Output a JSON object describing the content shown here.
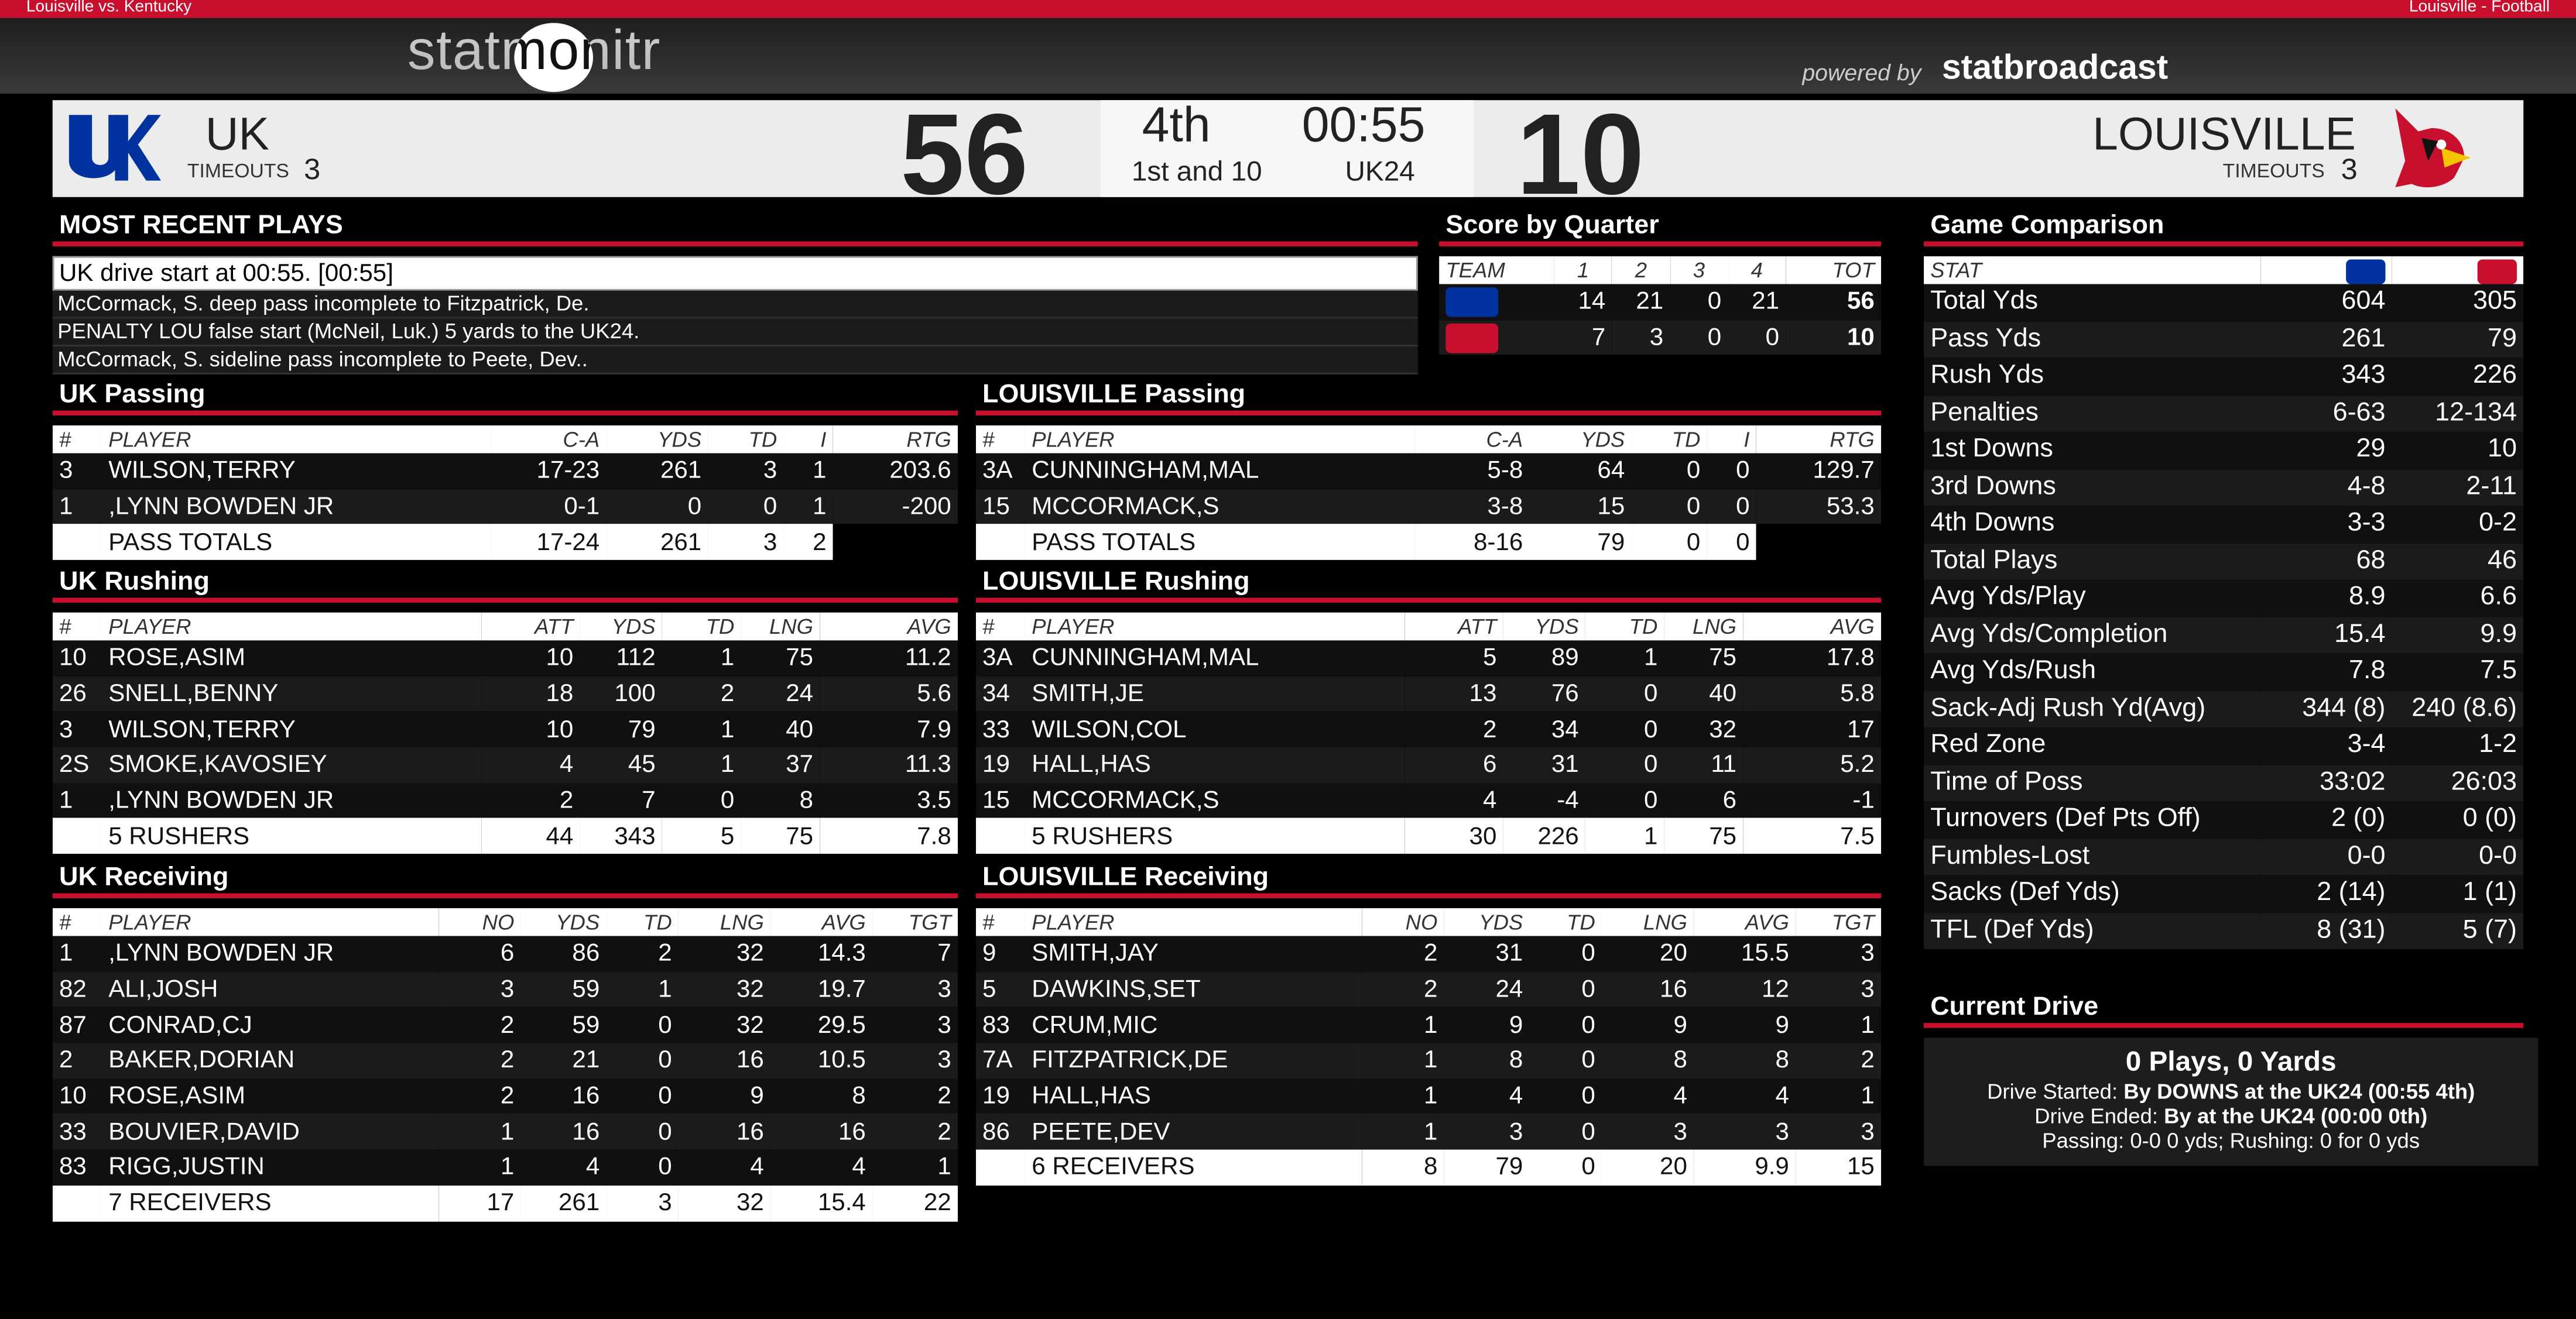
{
  "header": {
    "left": "Louisville vs. Kentucky",
    "right": "Louisville - Football",
    "logo": "statmonitr",
    "powered_by": "powered by",
    "brand": "statbroadcast"
  },
  "scoreboard": {
    "home": {
      "name": "UK",
      "timeouts_label": "TIMEOUTS",
      "timeouts": 3,
      "score": 56
    },
    "away": {
      "name": "LOUISVILLE",
      "timeouts_label": "TIMEOUTS",
      "timeouts": 3,
      "score": 10
    },
    "quarter": "4th",
    "clock": "00:55",
    "down": "1st and 10",
    "spot": "UK24"
  },
  "recent_plays": {
    "title": "MOST RECENT PLAYS",
    "plays": [
      "UK drive start at 00:55. [00:55]",
      "McCormack, S. deep pass incomplete to Fitzpatrick, De.",
      "PENALTY LOU false start (McNeil, Luk.) 5 yards to the UK24.",
      "McCormack, S. sideline pass incomplete to Peete, Dev.."
    ]
  },
  "score_by_quarter": {
    "title": "Score by Quarter",
    "header": [
      "TEAM",
      "1",
      "2",
      "3",
      "4",
      "TOT"
    ],
    "rows": [
      [
        14,
        21,
        0,
        21,
        56
      ],
      [
        7,
        3,
        0,
        0,
        10
      ]
    ]
  },
  "uk_passing": {
    "title": "UK Passing",
    "header": [
      "#",
      "PLAYER",
      "C-A",
      "YDS",
      "TD",
      "I",
      "RTG"
    ],
    "rows": [
      [
        3,
        "WILSON,TERRY",
        "17-23",
        261,
        3,
        1,
        203.6
      ],
      [
        1,
        ",LYNN BOWDEN JR",
        "0-1",
        0,
        0,
        1,
        -200
      ]
    ],
    "total": [
      "PASS TOTALS",
      "17-24",
      261,
      3,
      2
    ]
  },
  "lou_passing": {
    "title": "LOUISVILLE Passing",
    "header": [
      "#",
      "PLAYER",
      "C-A",
      "YDS",
      "TD",
      "I",
      "RTG"
    ],
    "rows": [
      [
        "3A",
        "CUNNINGHAM,MAL",
        "5-8",
        64,
        0,
        0,
        129.7
      ],
      [
        15,
        "MCCORMACK,S",
        "3-8",
        15,
        0,
        0,
        53.3
      ]
    ],
    "total": [
      "PASS TOTALS",
      "8-16",
      79,
      0,
      0
    ]
  },
  "uk_rushing": {
    "title": "UK Rushing",
    "header": [
      "#",
      "PLAYER",
      "ATT",
      "YDS",
      "TD",
      "LNG",
      "AVG"
    ],
    "rows": [
      [
        10,
        "ROSE,ASIM",
        10,
        112,
        1,
        75,
        11.2
      ],
      [
        26,
        "SNELL,BENNY",
        18,
        100,
        2,
        24,
        5.6
      ],
      [
        3,
        "WILSON,TERRY",
        10,
        79,
        1,
        40,
        7.9
      ],
      [
        "2S",
        "SMOKE,KAVOSIEY",
        4,
        45,
        1,
        37,
        11.3
      ],
      [
        1,
        ",LYNN BOWDEN JR",
        2,
        7,
        0,
        8,
        3.5
      ]
    ],
    "total": [
      "5 RUSHERS",
      44,
      343,
      5,
      75,
      7.8
    ]
  },
  "lou_rushing": {
    "title": "LOUISVILLE Rushing",
    "header": [
      "#",
      "PLAYER",
      "ATT",
      "YDS",
      "TD",
      "LNG",
      "AVG"
    ],
    "rows": [
      [
        "3A",
        "CUNNINGHAM,MAL",
        5,
        89,
        1,
        75,
        17.8
      ],
      [
        34,
        "SMITH,JE",
        13,
        76,
        0,
        40,
        5.8
      ],
      [
        33,
        "WILSON,COL",
        2,
        34,
        0,
        32,
        17
      ],
      [
        19,
        "HALL,HAS",
        6,
        31,
        0,
        11,
        5.2
      ],
      [
        15,
        "MCCORMACK,S",
        4,
        -4,
        0,
        6,
        -1
      ]
    ],
    "total": [
      "5 RUSHERS",
      30,
      226,
      1,
      75,
      7.5
    ]
  },
  "uk_receiving": {
    "title": "UK Receiving",
    "header": [
      "#",
      "PLAYER",
      "NO",
      "YDS",
      "TD",
      "LNG",
      "AVG",
      "TGT"
    ],
    "rows": [
      [
        1,
        ",LYNN BOWDEN JR",
        6,
        86,
        2,
        32,
        14.3,
        7
      ],
      [
        82,
        "ALI,JOSH",
        3,
        59,
        1,
        32,
        19.7,
        3
      ],
      [
        87,
        "CONRAD,CJ",
        2,
        59,
        0,
        32,
        29.5,
        3
      ],
      [
        2,
        "BAKER,DORIAN",
        2,
        21,
        0,
        16,
        10.5,
        3
      ],
      [
        10,
        "ROSE,ASIM",
        2,
        16,
        0,
        9,
        8,
        2
      ],
      [
        33,
        "BOUVIER,DAVID",
        1,
        16,
        0,
        16,
        16,
        2
      ],
      [
        83,
        "RIGG,JUSTIN",
        1,
        4,
        0,
        4,
        4,
        1
      ]
    ],
    "total": [
      "7 RECEIVERS",
      17,
      261,
      3,
      32,
      15.4,
      22
    ]
  },
  "lou_receiving": {
    "title": "LOUISVILLE Receiving",
    "header": [
      "#",
      "PLAYER",
      "NO",
      "YDS",
      "TD",
      "LNG",
      "AVG",
      "TGT"
    ],
    "rows": [
      [
        9,
        "SMITH,JAY",
        2,
        31,
        0,
        20,
        15.5,
        3
      ],
      [
        5,
        "DAWKINS,SET",
        2,
        24,
        0,
        16,
        12,
        3
      ],
      [
        83,
        "CRUM,MIC",
        1,
        9,
        0,
        9,
        9,
        1
      ],
      [
        "7A",
        "FITZPATRICK,DE",
        1,
        8,
        0,
        8,
        8,
        2
      ],
      [
        19,
        "HALL,HAS",
        1,
        4,
        0,
        4,
        4,
        1
      ],
      [
        86,
        "PEETE,DEV",
        1,
        3,
        0,
        3,
        3,
        3
      ]
    ],
    "total": [
      "6 RECEIVERS",
      8,
      79,
      0,
      20,
      9.9,
      15
    ]
  },
  "game_comparison": {
    "title": "Game Comparison",
    "stat_label": "STAT",
    "rows": [
      [
        "Total Yds",
        604,
        305
      ],
      [
        "Pass Yds",
        261,
        79
      ],
      [
        "Rush Yds",
        343,
        226
      ],
      [
        "Penalties",
        "6-63",
        "12-134"
      ],
      [
        "1st Downs",
        29,
        10
      ],
      [
        "3rd Downs",
        "4-8",
        "2-11"
      ],
      [
        "4th Downs",
        "3-3",
        "0-2"
      ],
      [
        "Total Plays",
        68,
        46
      ],
      [
        "Avg Yds/Play",
        8.9,
        6.6
      ],
      [
        "Avg Yds/Completion",
        15.4,
        9.9
      ],
      [
        "Avg Yds/Rush",
        7.8,
        7.5
      ],
      [
        "Sack-Adj Rush Yd(Avg)",
        "344 (8)",
        "240 (8.6)"
      ],
      [
        "Red Zone",
        "3-4",
        "1-2"
      ],
      [
        "Time of Poss",
        "33:02",
        "26:03"
      ],
      [
        "Turnovers (Def Pts Off)",
        "2 (0)",
        "0 (0)"
      ],
      [
        "Fumbles-Lost",
        "0-0",
        "0-0"
      ],
      [
        "Sacks (Def Yds)",
        "2 (14)",
        "1 (1)"
      ],
      [
        "TFL (Def Yds)",
        "8 (31)",
        "5 (7)"
      ]
    ]
  },
  "current_drive": {
    "title": "Current Drive",
    "summary": "0 Plays, 0 Yards",
    "started_label": "Drive Started:",
    "started": "By DOWNS at the UK24 (00:55 4th)",
    "ended_label": "Drive Ended:",
    "ended": "By at the UK24 (00:00 0th)",
    "stats": "Passing: 0-0 0 yds; Rushing: 0 for 0 yds"
  }
}
